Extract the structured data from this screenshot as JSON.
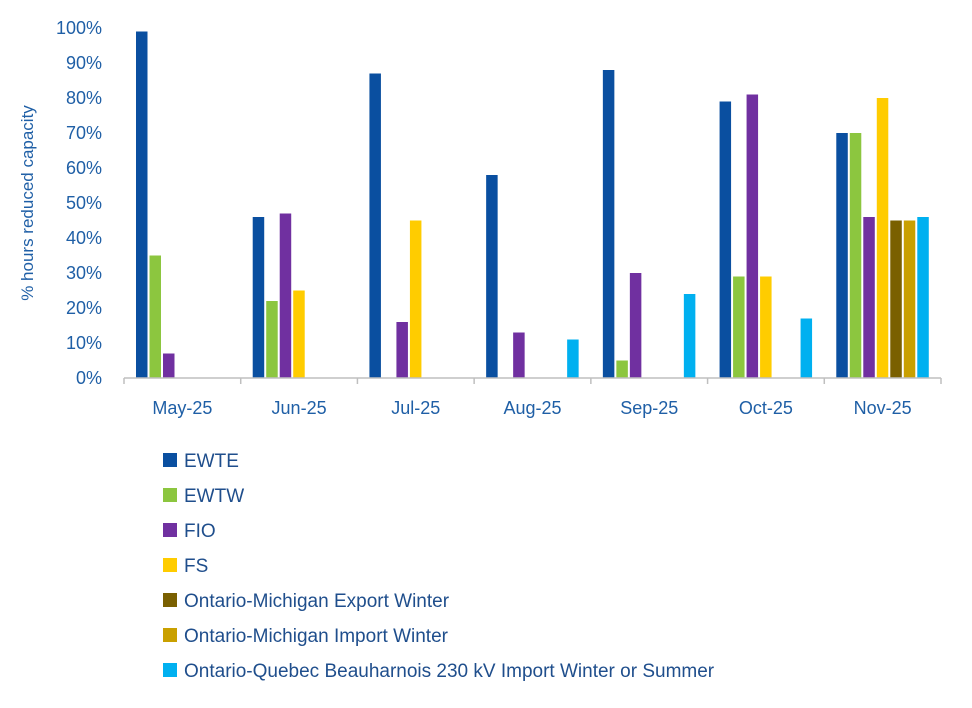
{
  "chart_data": {
    "type": "bar",
    "ylabel": "% hours reduced capacity",
    "xlabel": "",
    "ylim": [
      0,
      100
    ],
    "yticks": [
      "0%",
      "10%",
      "20%",
      "30%",
      "40%",
      "50%",
      "60%",
      "70%",
      "80%",
      "90%",
      "100%"
    ],
    "grid": false,
    "legend_position": "bottom-left",
    "categories": [
      "May-25",
      "Jun-25",
      "Jul-25",
      "Aug-25",
      "Sep-25",
      "Oct-25",
      "Nov-25"
    ],
    "series": [
      {
        "name": "EWTE",
        "color": "#0a4fa0",
        "values": [
          99,
          46,
          87,
          58,
          88,
          79,
          70
        ]
      },
      {
        "name": "EWTW",
        "color": "#8cc63f",
        "values": [
          35,
          22,
          0,
          0,
          5,
          29,
          70
        ]
      },
      {
        "name": "FIO",
        "color": "#7030a0",
        "values": [
          7,
          47,
          16,
          13,
          30,
          81,
          46
        ]
      },
      {
        "name": "FS",
        "color": "#ffcc00",
        "values": [
          0,
          25,
          45,
          0,
          0,
          29,
          80
        ]
      },
      {
        "name": "Ontario-Michigan Export Winter",
        "color": "#7a6000",
        "values": [
          0,
          0,
          0,
          0,
          0,
          0,
          45
        ]
      },
      {
        "name": "Ontario-Michigan Import Winter",
        "color": "#c9a000",
        "values": [
          0,
          0,
          0,
          0,
          0,
          0,
          45
        ]
      },
      {
        "name": "Ontario-Quebec Beauharnois 230 kV Import Winter or Summer",
        "color": "#00b0f0",
        "values": [
          0,
          0,
          0,
          11,
          24,
          17,
          46
        ]
      }
    ]
  }
}
